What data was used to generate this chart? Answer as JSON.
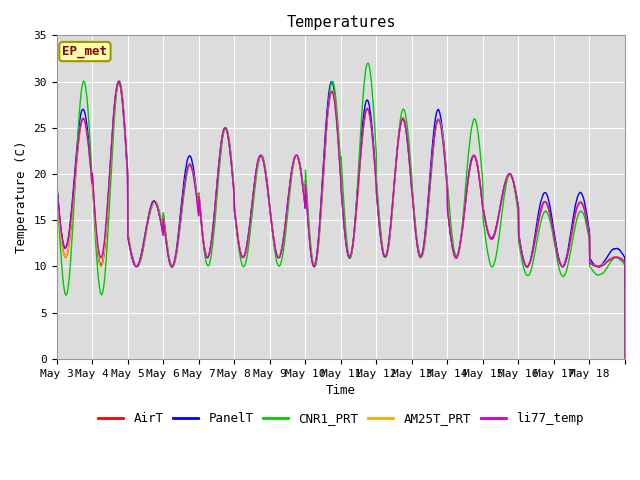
{
  "title": "Temperatures",
  "xlabel": "Time",
  "ylabel": "Temperature (C)",
  "ylim": [
    0,
    35
  ],
  "annotation": "EP_met",
  "plot_bg_color": "#dcdcdc",
  "fig_bg_color": "#ffffff",
  "series": {
    "AirT": {
      "color": "#ff0000",
      "lw": 1.0
    },
    "PanelT": {
      "color": "#0000ff",
      "lw": 1.0
    },
    "CNR1_PRT": {
      "color": "#00cc00",
      "lw": 1.0
    },
    "AM25T_PRT": {
      "color": "#ffaa00",
      "lw": 1.0
    },
    "li77_temp": {
      "color": "#cc00cc",
      "lw": 1.0
    }
  },
  "xtick_labels": [
    "May 3",
    "May 4",
    "May 5",
    "May 6",
    "May 7",
    "May 8",
    "May 9",
    "May 10",
    "May 11",
    "May 12",
    "May 13",
    "May 14",
    "May 15",
    "May 16",
    "May 17",
    "May 18"
  ],
  "ytick_values": [
    0,
    5,
    10,
    15,
    20,
    25,
    30,
    35
  ],
  "n_days": 16,
  "pts_per_day": 144,
  "font_family": "DejaVu Sans Mono",
  "font_size_title": 11,
  "font_size_axis": 9,
  "font_size_tick": 8,
  "font_size_legend": 9,
  "AirT_peaks": [
    26,
    30,
    17,
    21,
    25,
    22,
    22,
    29,
    27,
    26,
    26,
    22,
    20,
    17,
    17,
    11
  ],
  "AirT_mins": [
    11,
    10,
    10,
    10,
    11,
    11,
    11,
    10,
    11,
    11,
    11,
    11,
    13,
    10,
    10,
    10
  ],
  "PanelT_peaks": [
    27,
    30,
    17,
    22,
    25,
    22,
    22,
    30,
    28,
    26,
    27,
    22,
    20,
    18,
    18,
    12
  ],
  "PanelT_mins": [
    12,
    10,
    10,
    10,
    11,
    11,
    11,
    10,
    11,
    11,
    11,
    11,
    13,
    10,
    10,
    10
  ],
  "CNR1_peaks": [
    30,
    30,
    17,
    21,
    25,
    22,
    22,
    30,
    32,
    27,
    26,
    26,
    20,
    16,
    16,
    11
  ],
  "CNR1_mins": [
    7,
    7,
    10,
    10,
    10,
    10,
    10,
    10,
    11,
    11,
    11,
    11,
    10,
    9,
    9,
    9
  ],
  "AM25T_peaks": [
    26,
    30,
    17,
    21,
    25,
    22,
    22,
    29,
    27,
    26,
    26,
    22,
    20,
    17,
    17,
    11
  ],
  "AM25T_mins": [
    11,
    10,
    10,
    10,
    11,
    11,
    11,
    10,
    11,
    11,
    11,
    11,
    13,
    10,
    10,
    10
  ],
  "li77_peaks": [
    26,
    30,
    17,
    21,
    25,
    22,
    22,
    29,
    27,
    26,
    26,
    22,
    20,
    17,
    17,
    11
  ],
  "li77_mins": [
    12,
    11,
    10,
    10,
    11,
    11,
    11,
    10,
    11,
    11,
    11,
    11,
    13,
    10,
    10,
    10
  ]
}
